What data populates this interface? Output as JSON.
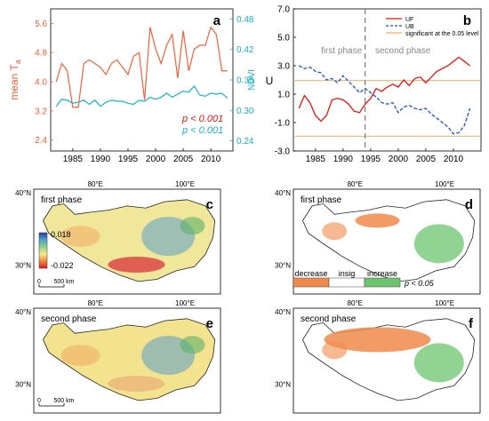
{
  "colors": {
    "ta": "#f4603a",
    "ndvi": "#17b3c6",
    "uf": "#e8120c",
    "ub": "#1f4fd8",
    "sig": "#f2b06a",
    "phase_line": "#777777",
    "decrease": "#f08a4b",
    "insig": "#ffffff",
    "increase": "#6cc46f"
  },
  "panel_a": {
    "letter": "a",
    "y_left_label": "mean T",
    "y_left_label_sub": "a",
    "y_right_label": "NDVI",
    "p_ta": "p < 0.001",
    "p_ndvi": "p < 0.001",
    "x_ticks": [
      "1985",
      "1990",
      "1995",
      "2000",
      "2005",
      "2010"
    ],
    "y_left_ticks": [
      "2.4",
      "3.2",
      "4.0",
      "4.8",
      "5.6"
    ],
    "y_right_ticks": [
      "0.24",
      "0.30",
      "0.36",
      "0.42",
      "0.48"
    ]
  },
  "panel_b": {
    "letter": "b",
    "y_label": "U",
    "legend": [
      "UF",
      "UB",
      "significant at the 0.05 level"
    ],
    "phase1": "first phase",
    "phase2": "second phase",
    "x_ticks": [
      "1985",
      "1990",
      "1995",
      "2000",
      "2005",
      "2010"
    ],
    "y_ticks": [
      "-3.0",
      "-1.0",
      "1.0",
      "3.0",
      "5.0",
      "7.0"
    ]
  },
  "maps": {
    "lat_labels": [
      "40°N",
      "30°N"
    ],
    "lon_labels": [
      "80°E",
      "100°E"
    ],
    "scale_labels": [
      "0",
      "500 km"
    ],
    "c": {
      "letter": "c",
      "title": "first phase",
      "colorbar_max": "0.018",
      "colorbar_min": "-0.022"
    },
    "d": {
      "letter": "d",
      "title": "first phase",
      "legend": [
        "decrease",
        "insig",
        "increase"
      ],
      "p_text": "p < 0.05"
    },
    "e": {
      "letter": "e",
      "title": "second phase"
    },
    "f": {
      "letter": "f",
      "title": "second phase"
    }
  },
  "chart_data": [
    {
      "type": "line",
      "panel": "a",
      "x": [
        1982,
        1983,
        1984,
        1985,
        1986,
        1987,
        1988,
        1989,
        1990,
        1991,
        1992,
        1993,
        1994,
        1995,
        1996,
        1997,
        1998,
        1999,
        2000,
        2001,
        2002,
        2003,
        2004,
        2005,
        2006,
        2007,
        2008,
        2009,
        2010,
        2011,
        2012,
        2013
      ],
      "series": [
        {
          "name": "mean Ta",
          "axis": "left",
          "values": [
            4.0,
            4.5,
            4.3,
            3.3,
            3.3,
            4.5,
            4.6,
            4.5,
            4.4,
            4.2,
            4.5,
            4.6,
            4.4,
            4.2,
            4.7,
            4.8,
            3.5,
            5.5,
            4.9,
            4.5,
            5.0,
            5.3,
            4.1,
            5.4,
            4.3,
            4.9,
            5.0,
            5.0,
            5.5,
            5.3,
            4.3,
            4.3
          ]
        },
        {
          "name": "NDVI",
          "axis": "right",
          "values": [
            0.308,
            0.322,
            0.32,
            0.314,
            0.316,
            0.32,
            0.312,
            0.32,
            0.308,
            0.316,
            0.32,
            0.318,
            0.318,
            0.314,
            0.312,
            0.32,
            0.318,
            0.326,
            0.322,
            0.326,
            0.334,
            0.326,
            0.332,
            0.338,
            0.336,
            0.348,
            0.33,
            0.328,
            0.334,
            0.332,
            0.334,
            0.324
          ]
        }
      ],
      "xlim": [
        1981,
        2014
      ],
      "ylim_left": [
        2.1,
        6.0
      ],
      "ylim_right": [
        0.22,
        0.5
      ]
    },
    {
      "type": "line",
      "panel": "b",
      "x": [
        1982,
        1983,
        1984,
        1985,
        1986,
        1987,
        1988,
        1989,
        1990,
        1991,
        1992,
        1993,
        1994,
        1995,
        1996,
        1997,
        1998,
        1999,
        2000,
        2001,
        2002,
        2003,
        2004,
        2005,
        2006,
        2007,
        2008,
        2009,
        2010,
        2011,
        2012,
        2013
      ],
      "series": [
        {
          "name": "UF",
          "values": [
            0.0,
            0.9,
            0.4,
            -0.5,
            -0.9,
            -0.5,
            0.6,
            0.7,
            0.6,
            0.3,
            -0.2,
            -0.3,
            0.3,
            0.7,
            1.4,
            1.2,
            1.5,
            1.7,
            1.5,
            2.0,
            1.6,
            2.1,
            2.2,
            1.8,
            2.2,
            2.6,
            2.8,
            3.0,
            3.3,
            3.6,
            3.3,
            3.0
          ]
        },
        {
          "name": "UB",
          "values": [
            3.0,
            2.8,
            2.9,
            2.6,
            2.5,
            2.0,
            2.1,
            1.8,
            2.3,
            1.9,
            1.5,
            1.1,
            1.4,
            1.1,
            0.8,
            0.4,
            0.3,
            0.4,
            -0.3,
            0.1,
            0.2,
            0.0,
            -0.1,
            0.0,
            -0.4,
            -0.7,
            -1.0,
            -1.3,
            -1.8,
            -1.7,
            -1.2,
            0.0
          ]
        },
        {
          "name": "significant at the 0.05 level",
          "values_const": [
            1.96,
            -1.96
          ]
        }
      ],
      "phase_break": 1994,
      "xlim": [
        1981,
        2015
      ],
      "ylim": [
        -3.0,
        7.0
      ]
    }
  ]
}
